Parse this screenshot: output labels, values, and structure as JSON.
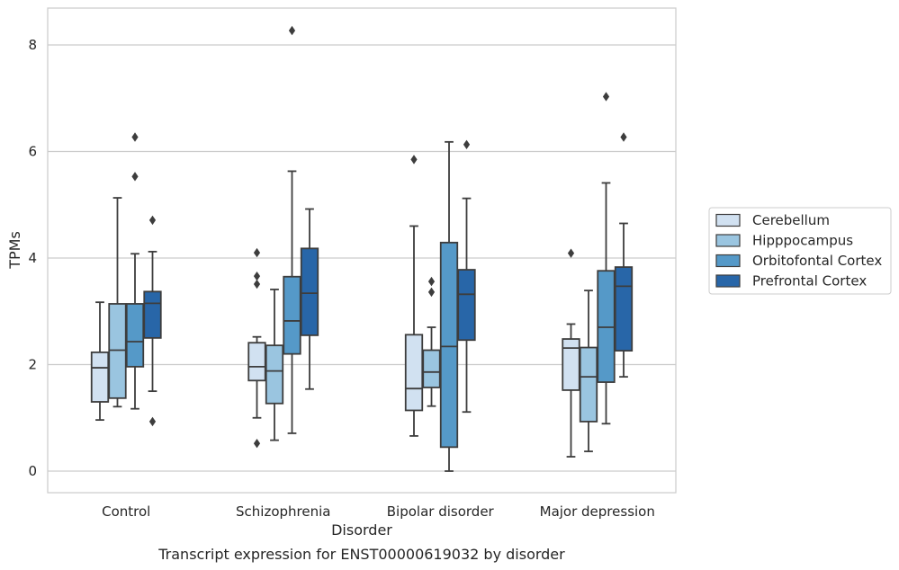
{
  "chart_data": {
    "type": "box",
    "xlabel": "Disorder",
    "ylabel": "TPMs",
    "caption": "Transcript expression for ENST00000619032 by disorder",
    "ylim": [
      -0.4,
      8.7
    ],
    "yticks": [
      0,
      2,
      4,
      6,
      8
    ],
    "grid": "horizontal",
    "legend_position": "right",
    "categories": [
      "Control",
      "Schizophrenia",
      "Bipolar disorder",
      "Major depression"
    ],
    "series": [
      {
        "name": "Cerebellum",
        "color": "#d1e1f1",
        "boxes": [
          {
            "whislo": 0.96,
            "q1": 1.3,
            "med": 1.94,
            "q3": 2.23,
            "whishi": 3.17,
            "fliers": []
          },
          {
            "whislo": 1.0,
            "q1": 1.7,
            "med": 1.96,
            "q3": 2.41,
            "whishi": 2.52,
            "fliers": [
              0.52,
              3.51,
              3.66,
              4.1
            ]
          },
          {
            "whislo": 0.66,
            "q1": 1.14,
            "med": 1.55,
            "q3": 2.56,
            "whishi": 4.6,
            "fliers": [
              5.85
            ]
          },
          {
            "whislo": 0.27,
            "q1": 1.52,
            "med": 2.31,
            "q3": 2.48,
            "whishi": 2.76,
            "fliers": [
              4.09
            ]
          }
        ]
      },
      {
        "name": "Hipppocampus",
        "color": "#9ac5e0",
        "boxes": [
          {
            "whislo": 1.21,
            "q1": 1.37,
            "med": 2.27,
            "q3": 3.14,
            "whishi": 5.13,
            "fliers": []
          },
          {
            "whislo": 0.58,
            "q1": 1.27,
            "med": 1.88,
            "q3": 2.36,
            "whishi": 3.41,
            "fliers": []
          },
          {
            "whislo": 1.22,
            "q1": 1.57,
            "med": 1.86,
            "q3": 2.27,
            "whishi": 2.7,
            "fliers": [
              3.36,
              3.56
            ]
          },
          {
            "whislo": 0.37,
            "q1": 0.93,
            "med": 1.77,
            "q3": 2.32,
            "whishi": 3.39,
            "fliers": []
          }
        ]
      },
      {
        "name": "Orbitofontal Cortex",
        "color": "#5599c8",
        "boxes": [
          {
            "whislo": 1.17,
            "q1": 1.96,
            "med": 2.43,
            "q3": 3.14,
            "whishi": 4.08,
            "fliers": [
              5.53,
              6.27
            ]
          },
          {
            "whislo": 0.71,
            "q1": 2.2,
            "med": 2.82,
            "q3": 3.65,
            "whishi": 5.63,
            "fliers": [
              8.27
            ]
          },
          {
            "whislo": 0.0,
            "q1": 0.45,
            "med": 2.34,
            "q3": 4.29,
            "whishi": 6.18,
            "fliers": []
          },
          {
            "whislo": 0.89,
            "q1": 1.67,
            "med": 2.7,
            "q3": 3.76,
            "whishi": 5.41,
            "fliers": [
              7.03
            ]
          }
        ]
      },
      {
        "name": "Prefrontal Cortex",
        "color": "#2866a8",
        "boxes": [
          {
            "whislo": 1.5,
            "q1": 2.5,
            "med": 3.15,
            "q3": 3.37,
            "whishi": 4.12,
            "fliers": [
              0.93,
              4.71
            ]
          },
          {
            "whislo": 1.54,
            "q1": 2.55,
            "med": 3.34,
            "q3": 4.18,
            "whishi": 4.92,
            "fliers": []
          },
          {
            "whislo": 1.11,
            "q1": 2.46,
            "med": 3.32,
            "q3": 3.78,
            "whishi": 5.12,
            "fliers": [
              6.13
            ]
          },
          {
            "whislo": 1.77,
            "q1": 2.26,
            "med": 3.47,
            "q3": 3.83,
            "whishi": 4.65,
            "fliers": [
              6.27
            ]
          }
        ]
      }
    ]
  }
}
